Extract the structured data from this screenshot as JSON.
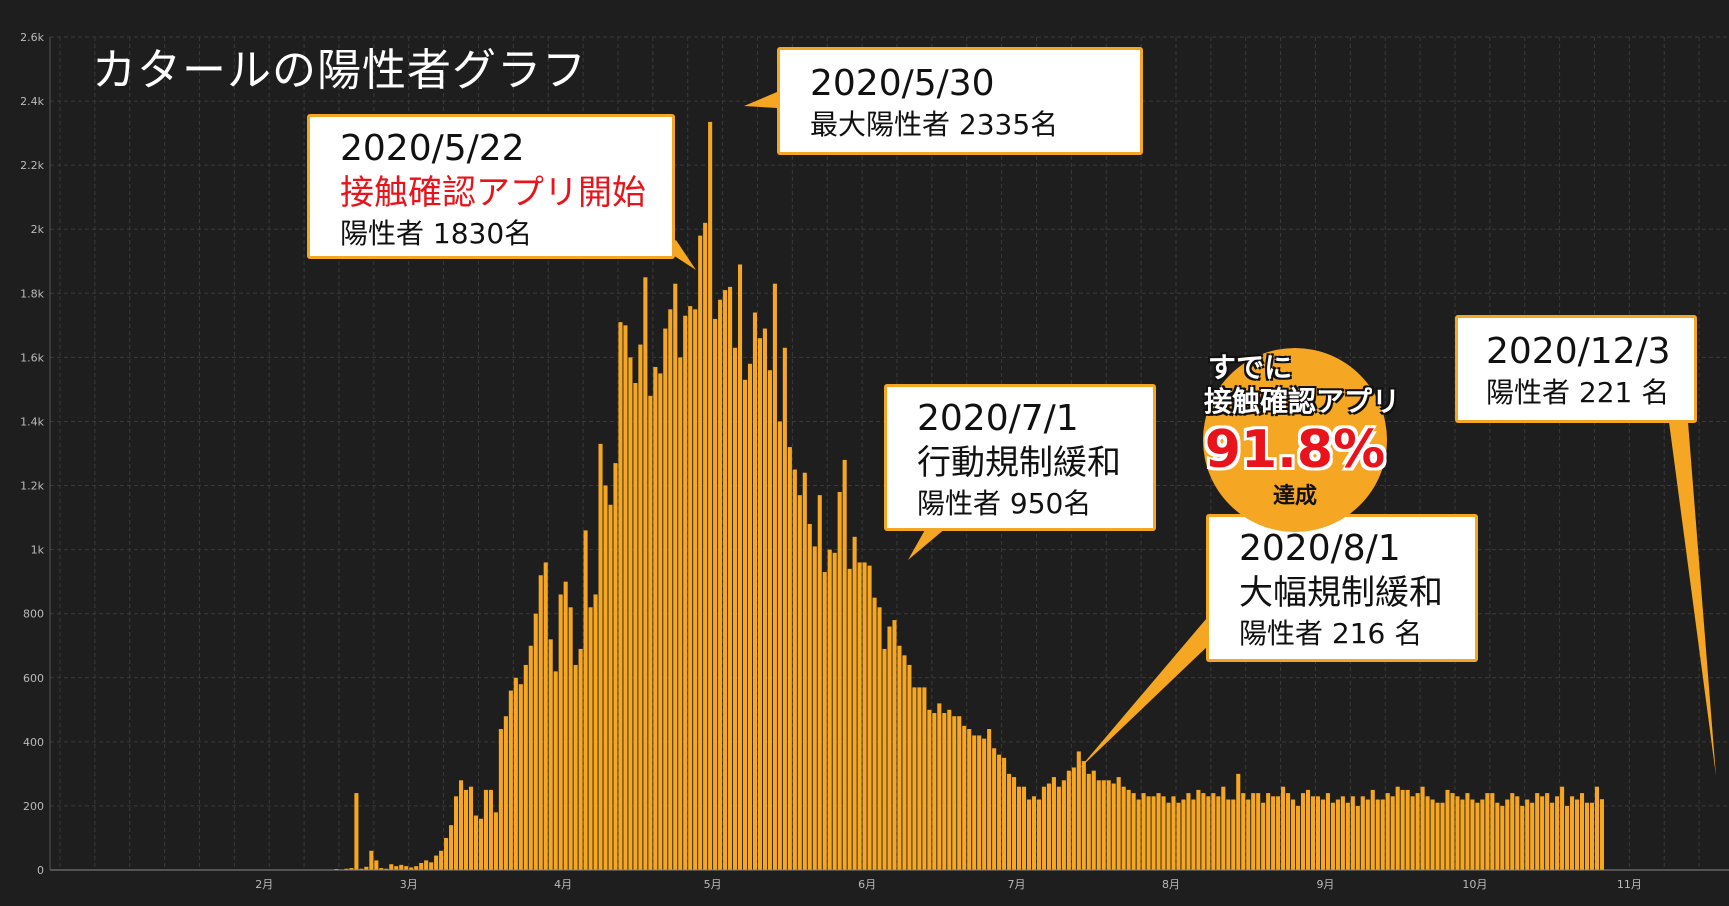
{
  "title": "カタールの陽性者グラフ",
  "colors": {
    "bar": "#f5a623",
    "background": "#1e1e1e",
    "grid": "#3a3a3a",
    "accent_red": "#e8131b"
  },
  "callouts": {
    "c1": {
      "date": "2020/5/22",
      "text": "接触確認アプリ開始",
      "sub": "陽性者 1830名"
    },
    "c2": {
      "date": "2020/5/30",
      "sub": "最大陽性者 2335名"
    },
    "c3": {
      "date": "2020/7/1",
      "text": "行動規制緩和",
      "sub": "陽性者 950名"
    },
    "c4": {
      "date": "2020/8/1",
      "text": "大幅規制緩和",
      "sub": "陽性者 216 名"
    },
    "c5": {
      "date": "2020/12/3",
      "sub": "陽性者 221 名"
    }
  },
  "badge": {
    "line1": "すでに",
    "line2": "接触確認アプリ",
    "percent": "91.8%",
    "done": "達成"
  },
  "chart_data": {
    "type": "bar",
    "title": "カタールの陽性者グラフ",
    "x_range": [
      "2020-01-04",
      "2020-12-06"
    ],
    "ylim": [
      0,
      2600
    ],
    "y_ticks": [
      0,
      200,
      400,
      600,
      800,
      1000,
      1200,
      1400,
      1600,
      1800,
      2000,
      2200,
      2400,
      2600
    ],
    "y_tick_labels": [
      "0",
      "200",
      "400",
      "600",
      "800",
      "1k",
      "1.2k",
      "1.4k",
      "1.6k",
      "1.8k",
      "2k",
      "2.2k",
      "2.4k",
      "2.6k"
    ],
    "x_ticks": [
      "2020-02-01",
      "2020-03-01",
      "2020-04-01",
      "2020-05-01",
      "2020-06-01",
      "2020-07-01",
      "2020-08-01",
      "2020-09-01",
      "2020-10-01",
      "2020-11-01"
    ],
    "x_tick_labels": [
      "2月",
      "3月",
      "4月",
      "5月",
      "6月",
      "7月",
      "8月",
      "9月",
      "10月",
      "11月"
    ],
    "grid": true,
    "legend": "none",
    "series": [
      {
        "start_date": "2020-01-04",
        "values": [
          0,
          0,
          0,
          0,
          0,
          0,
          0,
          0,
          0,
          0,
          0,
          0,
          0,
          0,
          0,
          0,
          0,
          0,
          0,
          0,
          0,
          0,
          0,
          0,
          0,
          0,
          0,
          0,
          0,
          0,
          0,
          0,
          0,
          0,
          0,
          0,
          0,
          0,
          0,
          0,
          0,
          0,
          0,
          0,
          0,
          0,
          0,
          0,
          0,
          0,
          0,
          0,
          0,
          0,
          0,
          0,
          0,
          3,
          2,
          4,
          6,
          240,
          4,
          10,
          60,
          30,
          6,
          4,
          18,
          12,
          16,
          12,
          8,
          12,
          22,
          30,
          24,
          45,
          60,
          100,
          140,
          230,
          280,
          250,
          260,
          170,
          160,
          250,
          250,
          180,
          440,
          480,
          560,
          600,
          580,
          640,
          700,
          800,
          920,
          960,
          720,
          620,
          860,
          900,
          820,
          640,
          690,
          1060,
          820,
          860,
          1330,
          1200,
          1140,
          1270,
          1710,
          1700,
          1600,
          1520,
          1640,
          1850,
          1480,
          1570,
          1550,
          1690,
          1750,
          1830,
          1600,
          1730,
          1760,
          1750,
          1980,
          2020,
          2335,
          1720,
          1780,
          1810,
          1820,
          1630,
          1890,
          1530,
          1580,
          1740,
          1660,
          1690,
          1560,
          1830,
          1400,
          1630,
          1320,
          1250,
          1170,
          1240,
          1080,
          1010,
          1170,
          930,
          1000,
          990,
          1180,
          1280,
          940,
          1040,
          960,
          960,
          950,
          850,
          820,
          690,
          760,
          780,
          700,
          670,
          640,
          570,
          570,
          570,
          500,
          490,
          520,
          490,
          500,
          480,
          480,
          450,
          440,
          420,
          420,
          410,
          440,
          380,
          360,
          350,
          300,
          290,
          260,
          260,
          220,
          230,
          220,
          260,
          270,
          290,
          260,
          280,
          310,
          320,
          370,
          340,
          300,
          310,
          280,
          280,
          280,
          270,
          290,
          260,
          250,
          240,
          220,
          240,
          230,
          230,
          240,
          230,
          210,
          230,
          210,
          220,
          240,
          220,
          250,
          240,
          230,
          240,
          230,
          260,
          220,
          220,
          300,
          240,
          220,
          240,
          240,
          210,
          240,
          230,
          230,
          260,
          240,
          220,
          200,
          240,
          250,
          230,
          230,
          220,
          240,
          210,
          220,
          230,
          210,
          230,
          200,
          230,
          220,
          250,
          220,
          220,
          240,
          230,
          260,
          250,
          250,
          230,
          240,
          260,
          230,
          220,
          210,
          210,
          250,
          240,
          230,
          220,
          240,
          220,
          210,
          220,
          240,
          240,
          210,
          200,
          220,
          240,
          230,
          200,
          220,
          210,
          240,
          230,
          240,
          210,
          230,
          260,
          200,
          230,
          220,
          240,
          210,
          210,
          260,
          221
        ]
      }
    ]
  }
}
